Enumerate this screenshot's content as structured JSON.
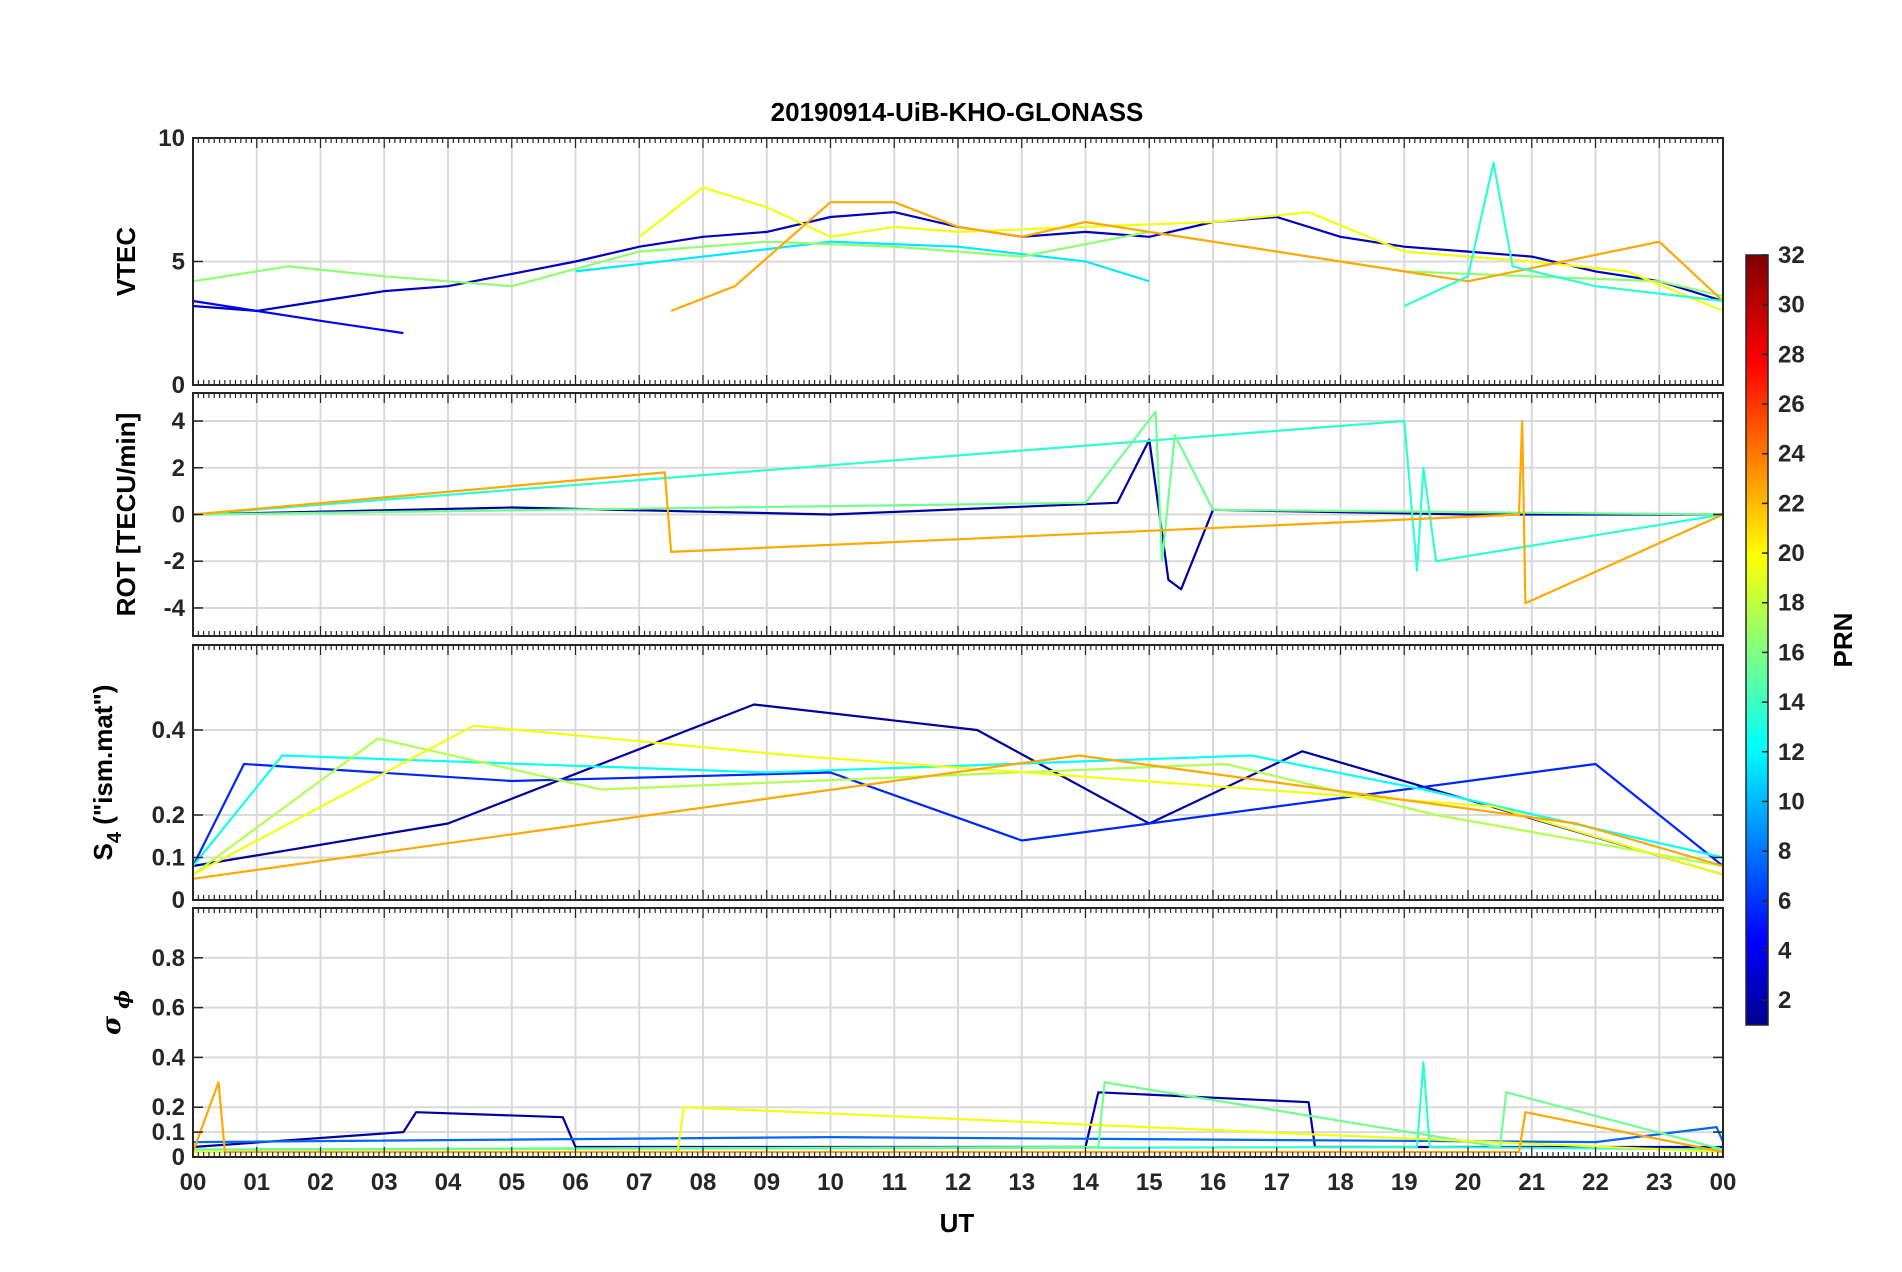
{
  "chart_data": {
    "type": "line",
    "title": "20190914-UiB-KHO-GLONASS",
    "xlabel": "UT",
    "x_ticks": [
      "00",
      "01",
      "02",
      "03",
      "04",
      "05",
      "06",
      "07",
      "08",
      "09",
      "10",
      "11",
      "12",
      "13",
      "14",
      "15",
      "16",
      "17",
      "18",
      "19",
      "20",
      "21",
      "22",
      "23",
      "00"
    ],
    "xlim": [
      0,
      24
    ],
    "grid": true,
    "colorbar": {
      "label": "PRN",
      "colormap": "jet",
      "range": [
        1,
        32
      ],
      "ticks": [
        "2",
        "4",
        "6",
        "8",
        "10",
        "12",
        "14",
        "16",
        "18",
        "20",
        "22",
        "24",
        "26",
        "28",
        "30",
        "32"
      ]
    },
    "panels": [
      {
        "id": "vtec",
        "ylabel": "VTEC",
        "ylim": [
          0,
          10
        ],
        "y_ticks": [
          0,
          5,
          10
        ],
        "y_tick_labels": [
          "0",
          "5",
          "10"
        ],
        "series": [
          {
            "prn": 3,
            "x": [
              0.0,
              1.0,
              2.0,
              3.0,
              4.0,
              5.0,
              6.0,
              7.0,
              8.0,
              9.0,
              10.0,
              11.0,
              12.0,
              13.0,
              14.0,
              15.0,
              16.0,
              17.0,
              18.0,
              19.0,
              20.0,
              21.0,
              22.0,
              23.0,
              24.0
            ],
            "y": [
              3.2,
              3.0,
              3.4,
              3.8,
              4.0,
              4.5,
              5.0,
              5.6,
              6.0,
              6.2,
              6.8,
              7.0,
              6.4,
              6.0,
              6.2,
              6.0,
              6.6,
              6.8,
              6.0,
              5.6,
              5.4,
              5.2,
              4.6,
              4.2,
              3.4
            ]
          },
          {
            "prn": 5,
            "x": [
              0.0,
              2.0,
              3.3
            ],
            "y": [
              3.4,
              2.6,
              2.1
            ]
          },
          {
            "prn": 12,
            "x": [
              6.0,
              8.0,
              10.0,
              12.0,
              14.0,
              15.0
            ],
            "y": [
              4.6,
              5.2,
              5.8,
              5.6,
              5.0,
              4.2
            ]
          },
          {
            "prn": 17,
            "x": [
              0.0,
              1.5,
              3.0,
              5.0,
              7.0,
              9.0,
              11.0,
              13.0,
              15.0,
              17.0,
              19.0,
              21.0,
              23.0,
              24.0
            ],
            "y": [
              4.2,
              4.8,
              4.4,
              4.0,
              5.4,
              5.8,
              5.6,
              5.2,
              6.2,
              5.4,
              4.6,
              4.4,
              4.2,
              3.6
            ]
          },
          {
            "prn": 20,
            "x": [
              7.0,
              8.0,
              9.0,
              10.0,
              11.0,
              12.0,
              14.0,
              16.0,
              17.5,
              19.0,
              21.0,
              22.5,
              24.0
            ],
            "y": [
              6.0,
              8.0,
              7.2,
              6.0,
              6.4,
              6.2,
              6.4,
              6.6,
              7.0,
              5.4,
              5.0,
              4.6,
              3.0
            ]
          },
          {
            "prn": 23,
            "x": [
              7.5,
              8.5,
              10.0,
              11.0,
              12.0,
              13.0,
              14.0,
              16.0,
              18.0,
              20.0,
              21.5,
              23.0,
              24.0
            ],
            "y": [
              3.0,
              4.0,
              7.4,
              7.4,
              6.4,
              6.0,
              6.6,
              5.8,
              5.0,
              4.2,
              5.0,
              5.8,
              3.4
            ]
          },
          {
            "prn": 14,
            "x": [
              19.0,
              20.0,
              20.4,
              20.5,
              20.7,
              22.0,
              24.0
            ],
            "y": [
              3.2,
              4.4,
              9.0,
              7.6,
              4.8,
              4.0,
              3.4
            ]
          }
        ]
      },
      {
        "id": "rot",
        "ylabel": "ROT [TECU/min]",
        "ylim": [
          -5.2,
          5.2
        ],
        "y_ticks": [
          -4,
          -2,
          0,
          2,
          4
        ],
        "y_tick_labels": [
          "-4",
          "-2",
          "0",
          "2",
          "4"
        ],
        "series": [
          {
            "prn": 2,
            "x": [
              0.0,
              5.0,
              10.0,
              14.5,
              15.0,
              15.3,
              15.5,
              16.0,
              20.0,
              24.0
            ],
            "y": [
              0.0,
              0.3,
              0.0,
              0.5,
              3.2,
              -2.8,
              -3.2,
              0.2,
              0.0,
              0.0
            ]
          },
          {
            "prn": 14,
            "x": [
              0.0,
              19.0,
              19.2,
              19.3,
              19.5,
              24.0
            ],
            "y": [
              0.0,
              4.0,
              -2.4,
              2.0,
              -2.0,
              0.0
            ]
          },
          {
            "prn": 16,
            "x": [
              0.0,
              14.0,
              15.1,
              15.2,
              15.4,
              16.0,
              24.0
            ],
            "y": [
              0.0,
              0.5,
              4.4,
              -2.0,
              3.4,
              0.2,
              0.0
            ]
          },
          {
            "prn": 23,
            "x": [
              0.0,
              7.4,
              7.5,
              20.8,
              20.85,
              20.9,
              24.0
            ],
            "y": [
              0.0,
              1.8,
              -1.6,
              0.0,
              4.0,
              -3.8,
              0.0
            ]
          }
        ]
      },
      {
        "id": "s4",
        "ylabel": "S4 (\"ism.mat\")",
        "ylim": [
          0,
          0.6
        ],
        "y_ticks": [
          0,
          0.1,
          0.2,
          0.4
        ],
        "y_tick_labels": [
          "0",
          "0.1",
          "0.2",
          "0.4"
        ],
        "series": [
          {
            "prn": 2,
            "x": [
              0.0,
              4.0,
              8.8,
              12.3,
              15.0,
              17.4,
              24.0
            ],
            "y": [
              0.08,
              0.18,
              0.46,
              0.4,
              0.18,
              0.35,
              0.06
            ]
          },
          {
            "prn": 6,
            "x": [
              0.0,
              0.8,
              5.0,
              10.0,
              13.0,
              22.0,
              24.0
            ],
            "y": [
              0.08,
              0.32,
              0.28,
              0.3,
              0.14,
              0.32,
              0.08
            ]
          },
          {
            "prn": 13,
            "x": [
              0.0,
              1.4,
              9.0,
              16.6,
              19.3,
              24.0
            ],
            "y": [
              0.08,
              0.34,
              0.3,
              0.34,
              0.26,
              0.1
            ]
          },
          {
            "prn": 18,
            "x": [
              0.0,
              2.9,
              6.4,
              16.2,
              19.5,
              24.0
            ],
            "y": [
              0.06,
              0.38,
              0.26,
              0.32,
              0.2,
              0.08
            ]
          },
          {
            "prn": 20,
            "x": [
              0.0,
              4.4,
              9.4,
              20.4,
              24.0
            ],
            "y": [
              0.06,
              0.41,
              0.34,
              0.22,
              0.06
            ]
          },
          {
            "prn": 23,
            "x": [
              0.0,
              12.9,
              13.9,
              21.7,
              24.0
            ],
            "y": [
              0.05,
              0.32,
              0.34,
              0.18,
              0.08
            ]
          }
        ]
      },
      {
        "id": "sigma_phi",
        "ylabel": "σ ϕ",
        "ylim": [
          0,
          1.0
        ],
        "y_ticks": [
          0,
          0.1,
          0.2,
          0.4,
          0.6,
          0.8
        ],
        "y_tick_labels": [
          "0",
          "0.1",
          "0.2",
          "0.4",
          "0.6",
          "0.8"
        ],
        "series": [
          {
            "prn": 2,
            "x": [
              0.0,
              3.3,
              3.5,
              5.8,
              6.0,
              14.0,
              14.2,
              17.5,
              17.6,
              24.0
            ],
            "y": [
              0.04,
              0.1,
              0.18,
              0.16,
              0.04,
              0.04,
              0.26,
              0.22,
              0.04,
              0.04
            ]
          },
          {
            "prn": 8,
            "x": [
              0.0,
              10.0,
              22.0,
              23.9,
              24.0
            ],
            "y": [
              0.06,
              0.08,
              0.06,
              0.12,
              0.06
            ]
          },
          {
            "prn": 14,
            "x": [
              0.0,
              19.2,
              19.3,
              19.4,
              24.0
            ],
            "y": [
              0.03,
              0.04,
              0.38,
              0.04,
              0.03
            ]
          },
          {
            "prn": 16,
            "x": [
              0.0,
              14.2,
              14.3,
              20.5,
              20.6,
              24.0
            ],
            "y": [
              0.03,
              0.04,
              0.3,
              0.04,
              0.26,
              0.03
            ]
          },
          {
            "prn": 20,
            "x": [
              0.0,
              7.6,
              7.7,
              24.0
            ],
            "y": [
              0.02,
              0.02,
              0.2,
              0.02
            ]
          },
          {
            "prn": 23,
            "x": [
              0.0,
              0.4,
              0.5,
              20.8,
              20.9,
              24.0
            ],
            "y": [
              0.02,
              0.3,
              0.02,
              0.02,
              0.18,
              0.02
            ]
          }
        ]
      }
    ]
  }
}
